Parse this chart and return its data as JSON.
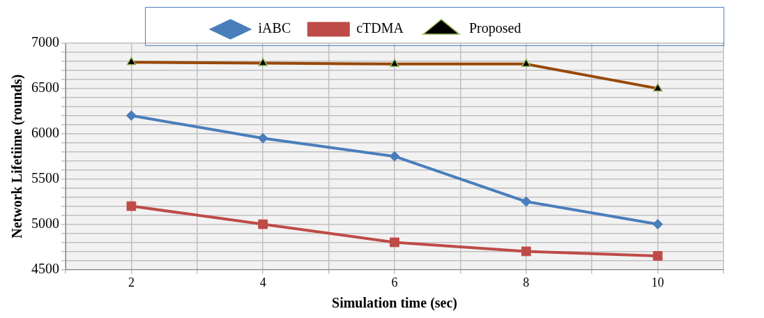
{
  "chart_data": {
    "type": "line",
    "xlabel": "Simulation time (sec)",
    "ylabel": "Network Lifetiime (rounds)",
    "x": [
      2,
      4,
      6,
      8,
      10
    ],
    "series": [
      {
        "name": "iABC",
        "color": "#4a7ebb",
        "marker": "diamond",
        "values": [
          6200,
          5950,
          5750,
          5250,
          5000
        ]
      },
      {
        "name": "cTDMA",
        "color": "#be4b48",
        "marker": "square",
        "values": [
          5200,
          5000,
          4800,
          4700,
          4650
        ]
      },
      {
        "name": "Proposed",
        "color": "#984807",
        "marker": "triangle",
        "values": [
          6790,
          6780,
          6770,
          6770,
          6500
        ]
      }
    ],
    "xlim": [
      1,
      11
    ],
    "xticks": [
      {
        "value": 1,
        "label": null
      },
      2,
      {
        "value": 3,
        "label": null
      },
      4,
      {
        "value": 5,
        "label": null
      },
      6,
      {
        "value": 7,
        "label": null
      },
      8,
      {
        "value": 9,
        "label": null
      },
      10,
      {
        "value": 11,
        "label": null
      }
    ],
    "ylim": [
      4500,
      7000
    ],
    "yticks": [
      4500,
      {
        "value": 4600,
        "label": null
      },
      {
        "value": 4700,
        "label": null
      },
      {
        "value": 4800,
        "label": null
      },
      {
        "value": 4900,
        "label": null
      },
      5000,
      {
        "value": 5100,
        "label": null
      },
      {
        "value": 5200,
        "label": null
      },
      {
        "value": 5300,
        "label": null
      },
      {
        "value": 5400,
        "label": null
      },
      5500,
      {
        "value": 5600,
        "label": null
      },
      {
        "value": 5700,
        "label": null
      },
      {
        "value": 5800,
        "label": null
      },
      {
        "value": 5900,
        "label": null
      },
      6000,
      {
        "value": 6100,
        "label": null
      },
      {
        "value": 6200,
        "label": null
      },
      {
        "value": 6300,
        "label": null
      },
      {
        "value": 6400,
        "label": null
      },
      6500,
      {
        "value": 6600,
        "label": null
      },
      {
        "value": 6700,
        "label": null
      },
      {
        "value": 6800,
        "label": null
      },
      {
        "value": 6900,
        "label": null
      },
      7000
    ],
    "grid": true,
    "legend": "top",
    "line_style": "solid"
  }
}
